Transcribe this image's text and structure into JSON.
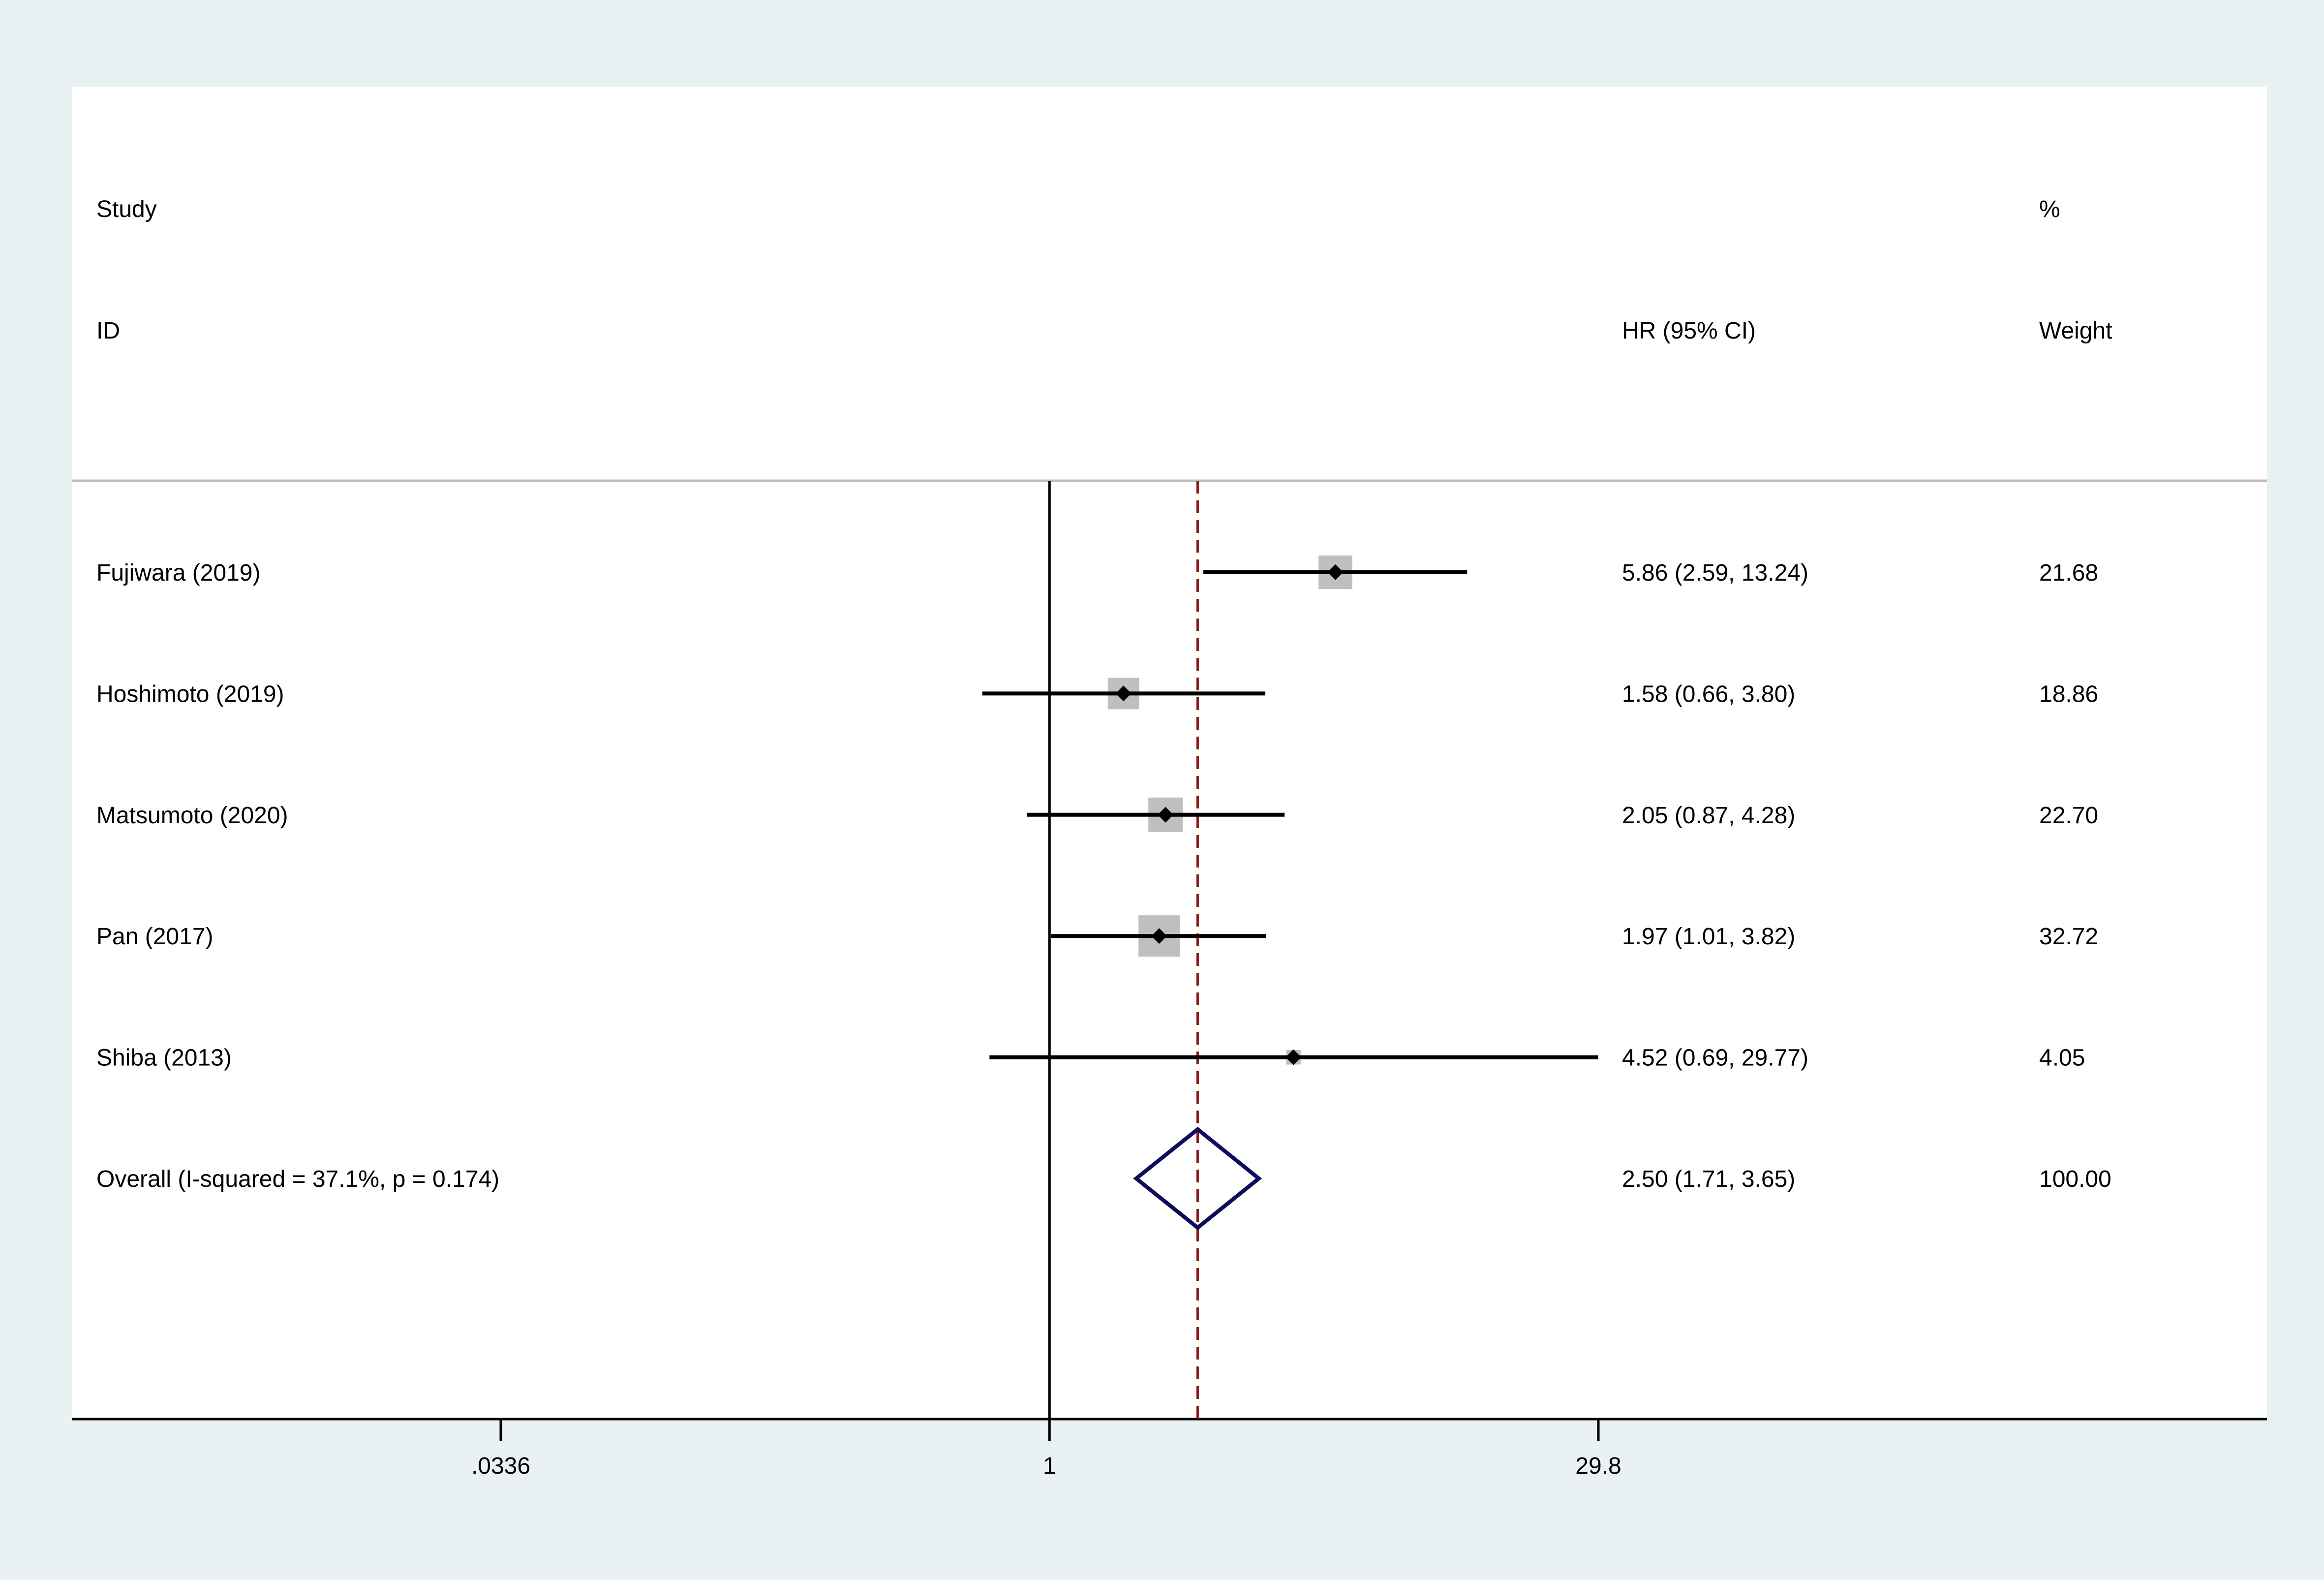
{
  "chart_data": {
    "type": "forest",
    "x_scale": "log",
    "effect_measure": "HR",
    "columns": {
      "study_header_line1": "Study",
      "study_header_line2": "ID",
      "effect_header": "HR (95% CI)",
      "weight_header_line1": "%",
      "weight_header_line2": "Weight"
    },
    "x_ticks": [
      {
        "value": 0.0336,
        "label": ".0336"
      },
      {
        "value": 1,
        "label": "1"
      },
      {
        "value": 29.8,
        "label": "29.8"
      }
    ],
    "xlim": [
      0.0336,
      29.8
    ],
    "null_line": 1,
    "pooled_line": 2.5,
    "studies": [
      {
        "label": "Fujiwara (2019)",
        "hr": 5.86,
        "lo": 2.59,
        "hi": 13.24,
        "ci_text": "5.86 (2.59, 13.24)",
        "weight": 21.68,
        "weight_text": "21.68"
      },
      {
        "label": "Hoshimoto (2019)",
        "hr": 1.58,
        "lo": 0.66,
        "hi": 3.8,
        "ci_text": "1.58 (0.66, 3.80)",
        "weight": 18.86,
        "weight_text": "18.86"
      },
      {
        "label": "Matsumoto (2020)",
        "hr": 2.05,
        "lo": 0.87,
        "hi": 4.28,
        "ci_text": "2.05 (0.87, 4.28)",
        "weight": 22.7,
        "weight_text": "22.70"
      },
      {
        "label": "Pan (2017)",
        "hr": 1.97,
        "lo": 1.01,
        "hi": 3.82,
        "ci_text": "1.97 (1.01, 3.82)",
        "weight": 32.72,
        "weight_text": "32.72"
      },
      {
        "label": "Shiba (2013)",
        "hr": 4.52,
        "lo": 0.69,
        "hi": 29.77,
        "ci_text": "4.52 (0.69, 29.77)",
        "weight": 4.05,
        "weight_text": "4.05"
      }
    ],
    "overall": {
      "label": "Overall  (I-squared = 37.1%, p = 0.174)",
      "hr": 2.5,
      "lo": 1.71,
      "hi": 3.65,
      "ci_text": "2.50 (1.71, 3.65)",
      "weight_text": "100.00"
    },
    "colors": {
      "background": "#eaf1f3",
      "panel": "#ffffff",
      "box": "#bfbfbf",
      "pooled_line": "#8b1a1a",
      "diamond": "#0c0c5a",
      "rule": "#bdbdbd"
    }
  }
}
